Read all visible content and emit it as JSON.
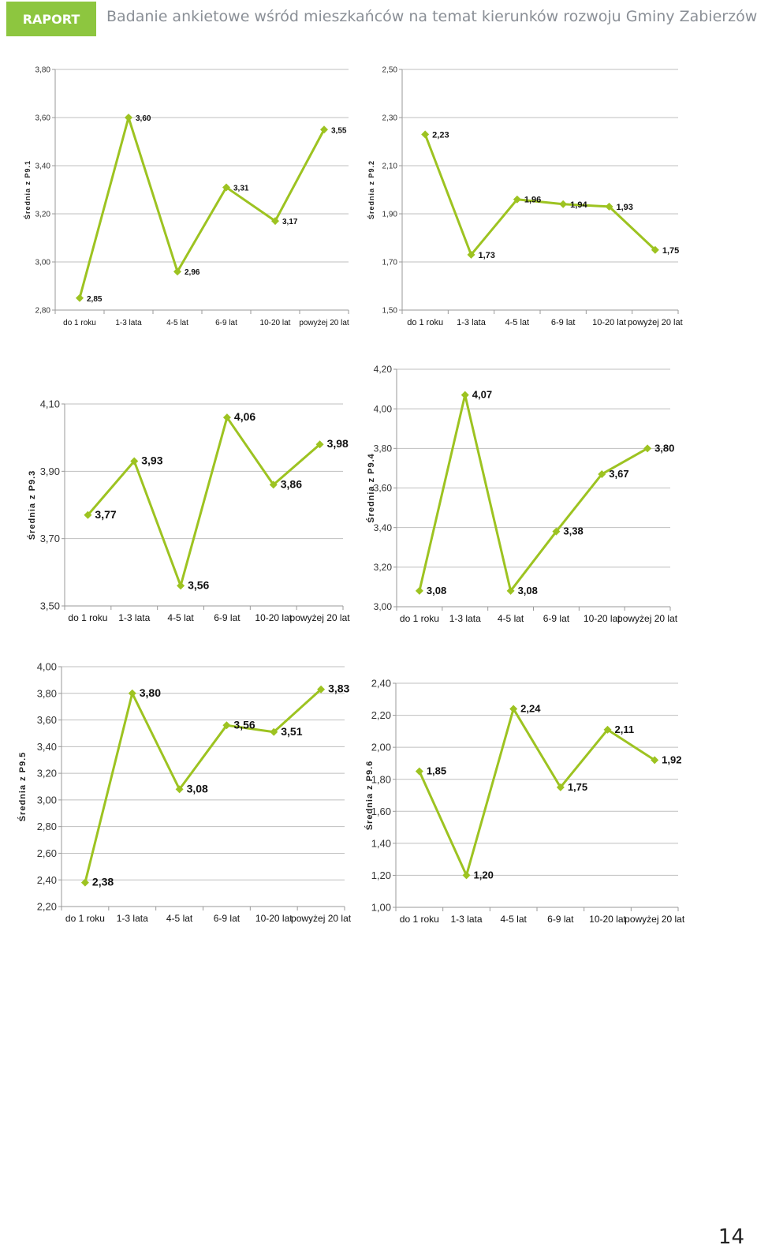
{
  "header": {
    "badge": "RAPORT",
    "title": "Badanie ankietowe wśród mieszkańców na temat kierunków rozwoju Gminy Zabierzów"
  },
  "page_number": "14",
  "colors": {
    "accent": "#8dc63f",
    "line": "#9dc321",
    "grid": "#bfbfbf"
  },
  "chart_data": [
    {
      "type": "line",
      "categories": [
        "do 1 roku",
        "1-3 lata",
        "4-5 lat",
        "6-9 lat",
        "10-20 lat",
        "powyżej 20 lat"
      ],
      "series": [
        {
          "values": [
            2.85,
            3.6,
            2.96,
            3.31,
            3.17,
            3.55
          ]
        }
      ],
      "data_labels": [
        "2,85",
        "3,60",
        "2,96",
        "3,31",
        "3,17",
        "3,55"
      ],
      "ylabel": "Średnia z P9.1",
      "ylim": [
        2.8,
        3.8
      ],
      "yticks": [
        "2,80",
        "3,00",
        "3,20",
        "3,40",
        "3,60",
        "3,80"
      ],
      "grid": true
    },
    {
      "type": "line",
      "categories": [
        "do 1 roku",
        "1-3 lata",
        "4-5 lat",
        "6-9 lat",
        "10-20 lat",
        "powyżej 20 lat"
      ],
      "series": [
        {
          "values": [
            2.23,
            1.73,
            1.96,
            1.94,
            1.93,
            1.75
          ]
        }
      ],
      "data_labels": [
        "2,23",
        "1,73",
        "1,96",
        "1,94",
        "1,93",
        "1,75"
      ],
      "ylabel": "Średnia z P9.2",
      "ylim": [
        1.5,
        2.5
      ],
      "yticks": [
        "1,50",
        "1,70",
        "1,90",
        "2,10",
        "2,30",
        "2,50"
      ],
      "grid": true
    },
    {
      "type": "line",
      "categories": [
        "do 1 roku",
        "1-3 lata",
        "4-5 lat",
        "6-9 lat",
        "10-20 lat",
        "powyżej 20 lat"
      ],
      "series": [
        {
          "values": [
            3.77,
            3.93,
            3.56,
            4.06,
            3.86,
            3.98
          ]
        }
      ],
      "data_labels": [
        "3,77",
        "3,93",
        "3,56",
        "4,06",
        "3,86",
        "3,98"
      ],
      "ylabel": "Średnia z P9.3",
      "ylim": [
        3.5,
        4.1
      ],
      "yticks": [
        "3,50",
        "3,70",
        "3,90",
        "4,10"
      ],
      "grid": true
    },
    {
      "type": "line",
      "categories": [
        "do 1 roku",
        "1-3 lata",
        "4-5 lat",
        "6-9 lat",
        "10-20 lat",
        "powyżej 20 lat"
      ],
      "series": [
        {
          "values": [
            3.08,
            4.07,
            3.08,
            3.38,
            3.67,
            3.8
          ]
        }
      ],
      "data_labels": [
        "3,08",
        "4,07",
        "3,08",
        "3,38",
        "3,67",
        "3,80"
      ],
      "ylabel": "Średnia z P9.4",
      "ylim": [
        3.0,
        4.2
      ],
      "yticks": [
        "3,00",
        "3,20",
        "3,40",
        "3,60",
        "3,80",
        "4,00",
        "4,20"
      ],
      "grid": true
    },
    {
      "type": "line",
      "categories": [
        "do 1 roku",
        "1-3 lata",
        "4-5 lat",
        "6-9 lat",
        "10-20 lat",
        "powyżej 20 lat"
      ],
      "series": [
        {
          "values": [
            2.38,
            3.8,
            3.08,
            3.56,
            3.51,
            3.83
          ]
        }
      ],
      "data_labels": [
        "2,38",
        "3,80",
        "3,08",
        "3,56",
        "3,51",
        "3,83"
      ],
      "ylabel": "Średnia z P9.5",
      "ylim": [
        2.2,
        4.0
      ],
      "yticks": [
        "2,20",
        "2,40",
        "2,60",
        "2,80",
        "3,00",
        "3,20",
        "3,40",
        "3,60",
        "3,80",
        "4,00"
      ],
      "grid": true
    },
    {
      "type": "line",
      "categories": [
        "do 1 roku",
        "1-3 lata",
        "4-5 lat",
        "6-9 lat",
        "10-20 lat",
        "powyżej 20 lat"
      ],
      "series": [
        {
          "values": [
            1.85,
            1.2,
            2.24,
            1.75,
            2.11,
            1.92
          ]
        }
      ],
      "data_labels": [
        "1,85",
        "1,20",
        "2,24",
        "1,75",
        "2,11",
        "1,92"
      ],
      "ylabel": "Średnia z P9.6",
      "ylim": [
        1.0,
        2.4
      ],
      "yticks": [
        "1,00",
        "1,20",
        "1,40",
        "1,60",
        "1,80",
        "2,00",
        "2,20",
        "2,40"
      ],
      "grid": true
    }
  ]
}
